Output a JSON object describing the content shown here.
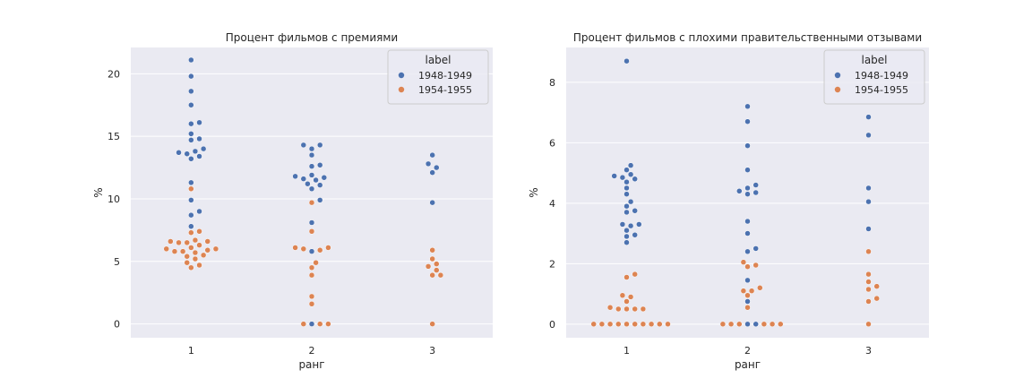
{
  "chart_data": [
    {
      "type": "scatter",
      "subtype": "swarm",
      "title": "Процент фильмов с премиями",
      "xlabel": "ранг",
      "ylabel": "%",
      "categories": [
        "1",
        "2",
        "3"
      ],
      "ylim": [
        -1.1,
        22.1
      ],
      "yticks": [
        0,
        5,
        10,
        15,
        20
      ],
      "grid": true,
      "legend": {
        "title": "label",
        "placement": "top-right"
      },
      "series": [
        {
          "name": "1948-1949",
          "color": "#4c72b0",
          "values": [
            [
              21.1,
              19.8,
              18.6,
              17.5,
              16.1,
              16.0,
              15.2,
              14.8,
              14.7,
              14.0,
              13.8,
              13.7,
              13.6,
              13.4,
              13.2,
              11.3,
              9.9,
              9.0,
              8.7,
              7.8
            ],
            [
              14.3,
              14.3,
              14.0,
              13.5,
              12.7,
              12.6,
              11.9,
              11.8,
              11.7,
              11.6,
              11.5,
              11.2,
              11.1,
              10.8,
              9.9,
              8.1,
              5.8,
              0.0
            ],
            [
              13.5,
              12.8,
              12.5,
              12.1,
              9.7
            ]
          ]
        },
        {
          "name": "1954-1955",
          "color": "#dd8452",
          "values": [
            [
              10.8,
              7.4,
              7.3,
              6.7,
              6.6,
              6.6,
              6.5,
              6.5,
              6.3,
              6.1,
              6.0,
              6.0,
              5.9,
              5.8,
              5.8,
              5.7,
              5.5,
              5.4,
              5.2,
              4.9,
              4.7,
              4.5
            ],
            [
              9.7,
              7.4,
              6.1,
              6.1,
              6.0,
              5.9,
              4.9,
              4.5,
              3.9,
              2.2,
              1.6,
              0.0,
              0.0,
              0.0
            ],
            [
              5.9,
              5.2,
              4.8,
              4.6,
              4.3,
              3.9,
              3.9,
              0.0
            ]
          ]
        }
      ]
    },
    {
      "type": "scatter",
      "subtype": "swarm",
      "title": "Процент фильмов с плохими правительственными отзывами",
      "xlabel": "ранг",
      "ylabel": "%",
      "categories": [
        "1",
        "2",
        "3"
      ],
      "ylim": [
        -0.45,
        9.15
      ],
      "yticks": [
        0,
        2,
        4,
        6,
        8
      ],
      "grid": true,
      "legend": {
        "title": "label",
        "placement": "top-right"
      },
      "series": [
        {
          "name": "1948-1949",
          "color": "#4c72b0",
          "values": [
            [
              8.7,
              5.25,
              5.1,
              4.95,
              4.9,
              4.85,
              4.8,
              4.7,
              4.5,
              4.3,
              4.05,
              3.9,
              3.75,
              3.7,
              3.3,
              3.3,
              3.25,
              3.1,
              2.95,
              2.9,
              2.7
            ],
            [
              7.2,
              6.7,
              5.9,
              5.1,
              4.6,
              4.5,
              4.4,
              4.35,
              4.3,
              3.4,
              3.0,
              2.5,
              2.4,
              1.45,
              0.75,
              0.0,
              0.0
            ],
            [
              6.85,
              6.25,
              4.5,
              4.05,
              3.15
            ]
          ]
        },
        {
          "name": "1954-1955",
          "color": "#dd8452",
          "values": [
            [
              1.65,
              1.55,
              0.95,
              0.9,
              0.75,
              0.55,
              0.5,
              0.5,
              0.5,
              0.5,
              0.0,
              0.0,
              0.0,
              0.0,
              0.0,
              0.0,
              0.0,
              0.0,
              0.0,
              0.0
            ],
            [
              2.05,
              1.95,
              1.9,
              1.2,
              1.1,
              1.1,
              0.95,
              0.55,
              0.0,
              0.0,
              0.0,
              0.0,
              0.0,
              0.0
            ],
            [
              2.4,
              1.65,
              1.4,
              1.25,
              1.15,
              0.85,
              0.75,
              0.0
            ]
          ]
        }
      ]
    }
  ]
}
